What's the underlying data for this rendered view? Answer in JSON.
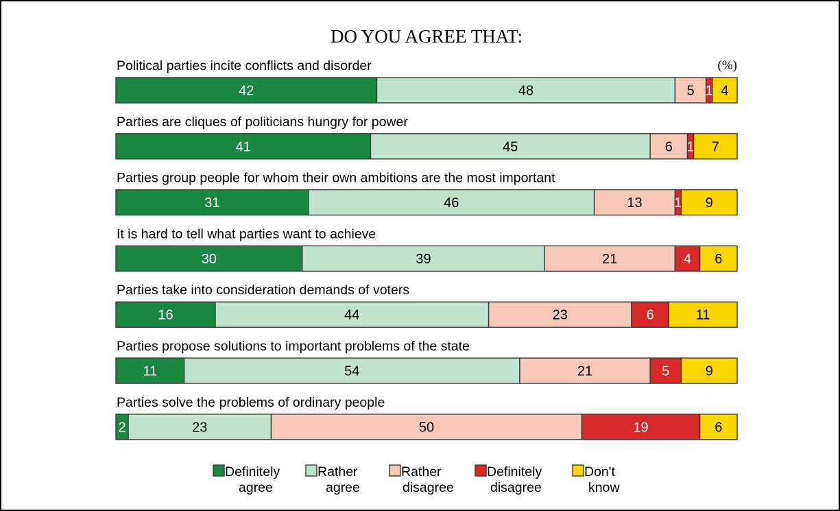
{
  "colors": {
    "definitely_agree": "#1a8840",
    "rather_agree": "#bfe3cc",
    "rather_disagree": "#f6c8b6",
    "definitely_disagree": "#d7282c",
    "dont_know": "#fbd600"
  },
  "chart_data": {
    "type": "bar",
    "orientation": "horizontal",
    "stacked": true,
    "percent_scale": true,
    "title": "DO YOU AGREE THAT:",
    "unit": "(%)",
    "categories": [
      "Political parties incite conflicts and disorder",
      "Parties are cliques of politicians hungry for power",
      "Parties group people for whom their own ambitions are the most important",
      "It is hard to tell what parties want to achieve",
      "Parties take into consideration demands of voters",
      "Parties propose solutions to important problems of the state",
      "Parties solve the problems of ordinary people"
    ],
    "series": [
      {
        "name": "Definitely agree",
        "legend": [
          "Definitely",
          "agree"
        ],
        "values": [
          42,
          41,
          31,
          30,
          16,
          11,
          2
        ]
      },
      {
        "name": "Rather agree",
        "legend": [
          "Rather",
          "agree"
        ],
        "values": [
          48,
          45,
          46,
          39,
          44,
          54,
          23
        ]
      },
      {
        "name": "Rather disagree",
        "legend": [
          "Rather",
          "disagree"
        ],
        "values": [
          5,
          6,
          13,
          21,
          23,
          21,
          50
        ]
      },
      {
        "name": "Definitely disagree",
        "legend": [
          "Definitely",
          "disagree"
        ],
        "values": [
          1,
          1,
          1,
          4,
          6,
          5,
          19
        ]
      },
      {
        "name": "Don't know",
        "legend": [
          "Don't",
          "know"
        ],
        "values": [
          4,
          7,
          9,
          6,
          11,
          9,
          6
        ]
      }
    ],
    "legend_position": "bottom",
    "grid": false
  }
}
